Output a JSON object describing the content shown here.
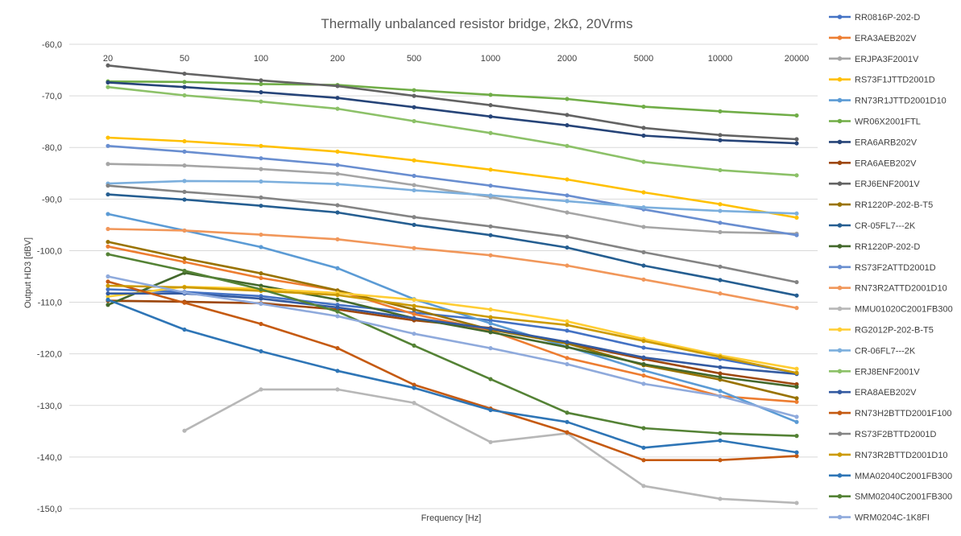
{
  "chart_data": {
    "type": "line",
    "title": "Thermally unbalanced resistor bridge, 2kΩ, 20Vrms",
    "xlabel": "Frequency [Hz]",
    "ylabel": "Output HD3 [dBV]",
    "x_axis_position": "top",
    "x_scale": "categorical",
    "categories": [
      "20",
      "50",
      "100",
      "200",
      "500",
      "1000",
      "2000",
      "5000",
      "10000",
      "20000"
    ],
    "ylim": [
      -150,
      -60
    ],
    "y_ticks": [
      "-60,0",
      "-70,0",
      "-80,0",
      "-90,0",
      "-100,0",
      "-110,0",
      "-120,0",
      "-130,0",
      "-140,0",
      "-150,0"
    ],
    "y_tick_values": [
      -60,
      -70,
      -80,
      -90,
      -100,
      -110,
      -120,
      -130,
      -140,
      -150
    ],
    "grid": "horizontal",
    "legend_position": "right",
    "series": [
      {
        "name": "RR0816P-202-D",
        "color": "#4472c4",
        "values": [
          -107.5,
          -108,
          -108.8,
          -110.5,
          -112,
          -113.5,
          -115.5,
          -118.8,
          -121,
          -123.7
        ]
      },
      {
        "name": "ERA3AEB202V",
        "color": "#ed7d31",
        "values": [
          -99.2,
          -102.2,
          -105.3,
          -107.7,
          -112.3,
          -115.5,
          -120.8,
          -124.2,
          -128.2,
          -129.3
        ]
      },
      {
        "name": "ERJPA3F2001V",
        "color": "#a5a5a5",
        "values": [
          -83.2,
          -83.5,
          -84.2,
          -85.1,
          -87.3,
          -89.6,
          -92.6,
          -95.4,
          -96.4,
          -96.7
        ]
      },
      {
        "name": "RS73F1JTTD2001D",
        "color": "#ffc000",
        "values": [
          -78.1,
          -78.8,
          -79.7,
          -80.8,
          -82.5,
          -84.3,
          -86.2,
          -88.7,
          -91,
          -93.6
        ]
      },
      {
        "name": "RN73R1JTTD2001D10",
        "color": "#5b9bd5",
        "values": [
          -92.9,
          -96.1,
          -99.3,
          -103.4,
          -109.4,
          -114.1,
          -118.6,
          -123.2,
          -127.2,
          -133.2
        ]
      },
      {
        "name": "WR06X2001FTL",
        "color": "#70ad47",
        "values": [
          -67.2,
          -67.3,
          -67.7,
          -67.9,
          -68.9,
          -69.8,
          -70.6,
          -72.1,
          -73,
          -73.8
        ]
      },
      {
        "name": "ERA6ARB202V",
        "color": "#264478",
        "values": [
          -67.4,
          -68.3,
          -69.3,
          -70.4,
          -72.2,
          -74,
          -75.7,
          -77.7,
          -78.6,
          -79.2
        ]
      },
      {
        "name": "ERA6AEB202V",
        "color": "#9e480e",
        "values": [
          -109.7,
          -109.9,
          -110.2,
          -111.4,
          -113.5,
          -115,
          -117.9,
          -121,
          -123.8,
          -125.9
        ]
      },
      {
        "name": "ERJ6ENF2001V",
        "color": "#636363",
        "values": [
          -64.1,
          -65.7,
          -67,
          -68.1,
          -70,
          -71.8,
          -73.7,
          -76.2,
          -77.6,
          -78.4
        ]
      },
      {
        "name": "RR1220P-202-B-T5",
        "color": "#997300",
        "values": [
          -98.3,
          -101.5,
          -104.4,
          -107.7,
          -111.4,
          -115.3,
          -118,
          -122.2,
          -125,
          -128.6
        ]
      },
      {
        "name": "CR-05FL7---2K",
        "color": "#255e91",
        "values": [
          -89.1,
          -90.1,
          -91.3,
          -92.6,
          -95,
          -97,
          -99.4,
          -102.9,
          -105.7,
          -108.7
        ]
      },
      {
        "name": "RR1220P-202-D",
        "color": "#43682b",
        "values": [
          -110.5,
          -104.3,
          -106.8,
          -109.5,
          -113.1,
          -115.8,
          -118.7,
          -122,
          -124.5,
          -126.4
        ]
      },
      {
        "name": "RS73F2ATTD2001D",
        "color": "#698ed0",
        "values": [
          -79.7,
          -80.8,
          -82.1,
          -83.4,
          -85.5,
          -87.4,
          -89.3,
          -92,
          -94.6,
          -97
        ]
      },
      {
        "name": "RN73R2ATTD2001D10",
        "color": "#f1975a",
        "values": [
          -95.8,
          -96.1,
          -96.9,
          -97.8,
          -99.5,
          -100.9,
          -102.9,
          -105.6,
          -108.3,
          -111.1
        ]
      },
      {
        "name": "MMU01020C2001FB300",
        "color": "#b7b7b7",
        "values": [
          null,
          -134.9,
          -126.9,
          -126.9,
          -129.5,
          -137.1,
          -135.4,
          -145.6,
          -148.1,
          -148.9
        ]
      },
      {
        "name": "RG2012P-202-B-T5",
        "color": "#ffcd33",
        "values": [
          -108.9,
          -107,
          -107.4,
          -108.2,
          -109.5,
          -111.4,
          -113.7,
          -117.1,
          -120.3,
          -122.9
        ]
      },
      {
        "name": "CR-06FL7---2K",
        "color": "#7cafdd",
        "values": [
          -87,
          -86.5,
          -86.6,
          -87.1,
          -88.3,
          -89.3,
          -90.4,
          -91.6,
          -92.3,
          -92.8
        ]
      },
      {
        "name": "ERJ8ENF2001V",
        "color": "#8cc168",
        "values": [
          -68.3,
          -69.9,
          -71.1,
          -72.5,
          -74.9,
          -77.2,
          -79.7,
          -82.8,
          -84.4,
          -85.4
        ]
      },
      {
        "name": "ERA8AEB202V",
        "color": "#335aa1",
        "values": [
          -108.3,
          -108.3,
          -109.3,
          -111,
          -113.1,
          -115.1,
          -117.7,
          -120.7,
          -122.6,
          -123.9
        ]
      },
      {
        "name": "RN73H2BTTD2001F100",
        "color": "#c55a11",
        "values": [
          -106,
          -110.1,
          -114.2,
          -118.9,
          -126,
          -130.6,
          -135.2,
          -140.6,
          -140.6,
          -139.8
        ]
      },
      {
        "name": "RS73F2BTTD2001D",
        "color": "#848484",
        "values": [
          -87.4,
          -88.6,
          -89.7,
          -91.2,
          -93.5,
          -95.3,
          -97.3,
          -100.3,
          -103.1,
          -106.1
        ]
      },
      {
        "name": "RN73R2BTTD2001D10",
        "color": "#cc9a00",
        "values": [
          -106.8,
          -107.1,
          -107.8,
          -108.6,
          -110.7,
          -112.9,
          -114.4,
          -117.5,
          -120.6,
          -123.7
        ]
      },
      {
        "name": "MMA02040C2001FB300",
        "color": "#2e75b6",
        "values": [
          -109.5,
          -115.3,
          -119.5,
          -123.3,
          -126.6,
          -130.9,
          -133.2,
          -138.2,
          -136.8,
          -139.1
        ]
      },
      {
        "name": "SMM02040C2001FB300",
        "color": "#548235",
        "values": [
          -100.7,
          -103.9,
          -107.5,
          -111.8,
          -118.4,
          -124.9,
          -131.4,
          -134.4,
          -135.4,
          -135.9
        ]
      },
      {
        "name": "WRM0204C-1K8FI",
        "color": "#8faadc",
        "values": [
          -105,
          -108.1,
          -110.3,
          -112.7,
          -116.1,
          -118.9,
          -122,
          -125.8,
          -128.2,
          -132.2
        ]
      }
    ]
  }
}
